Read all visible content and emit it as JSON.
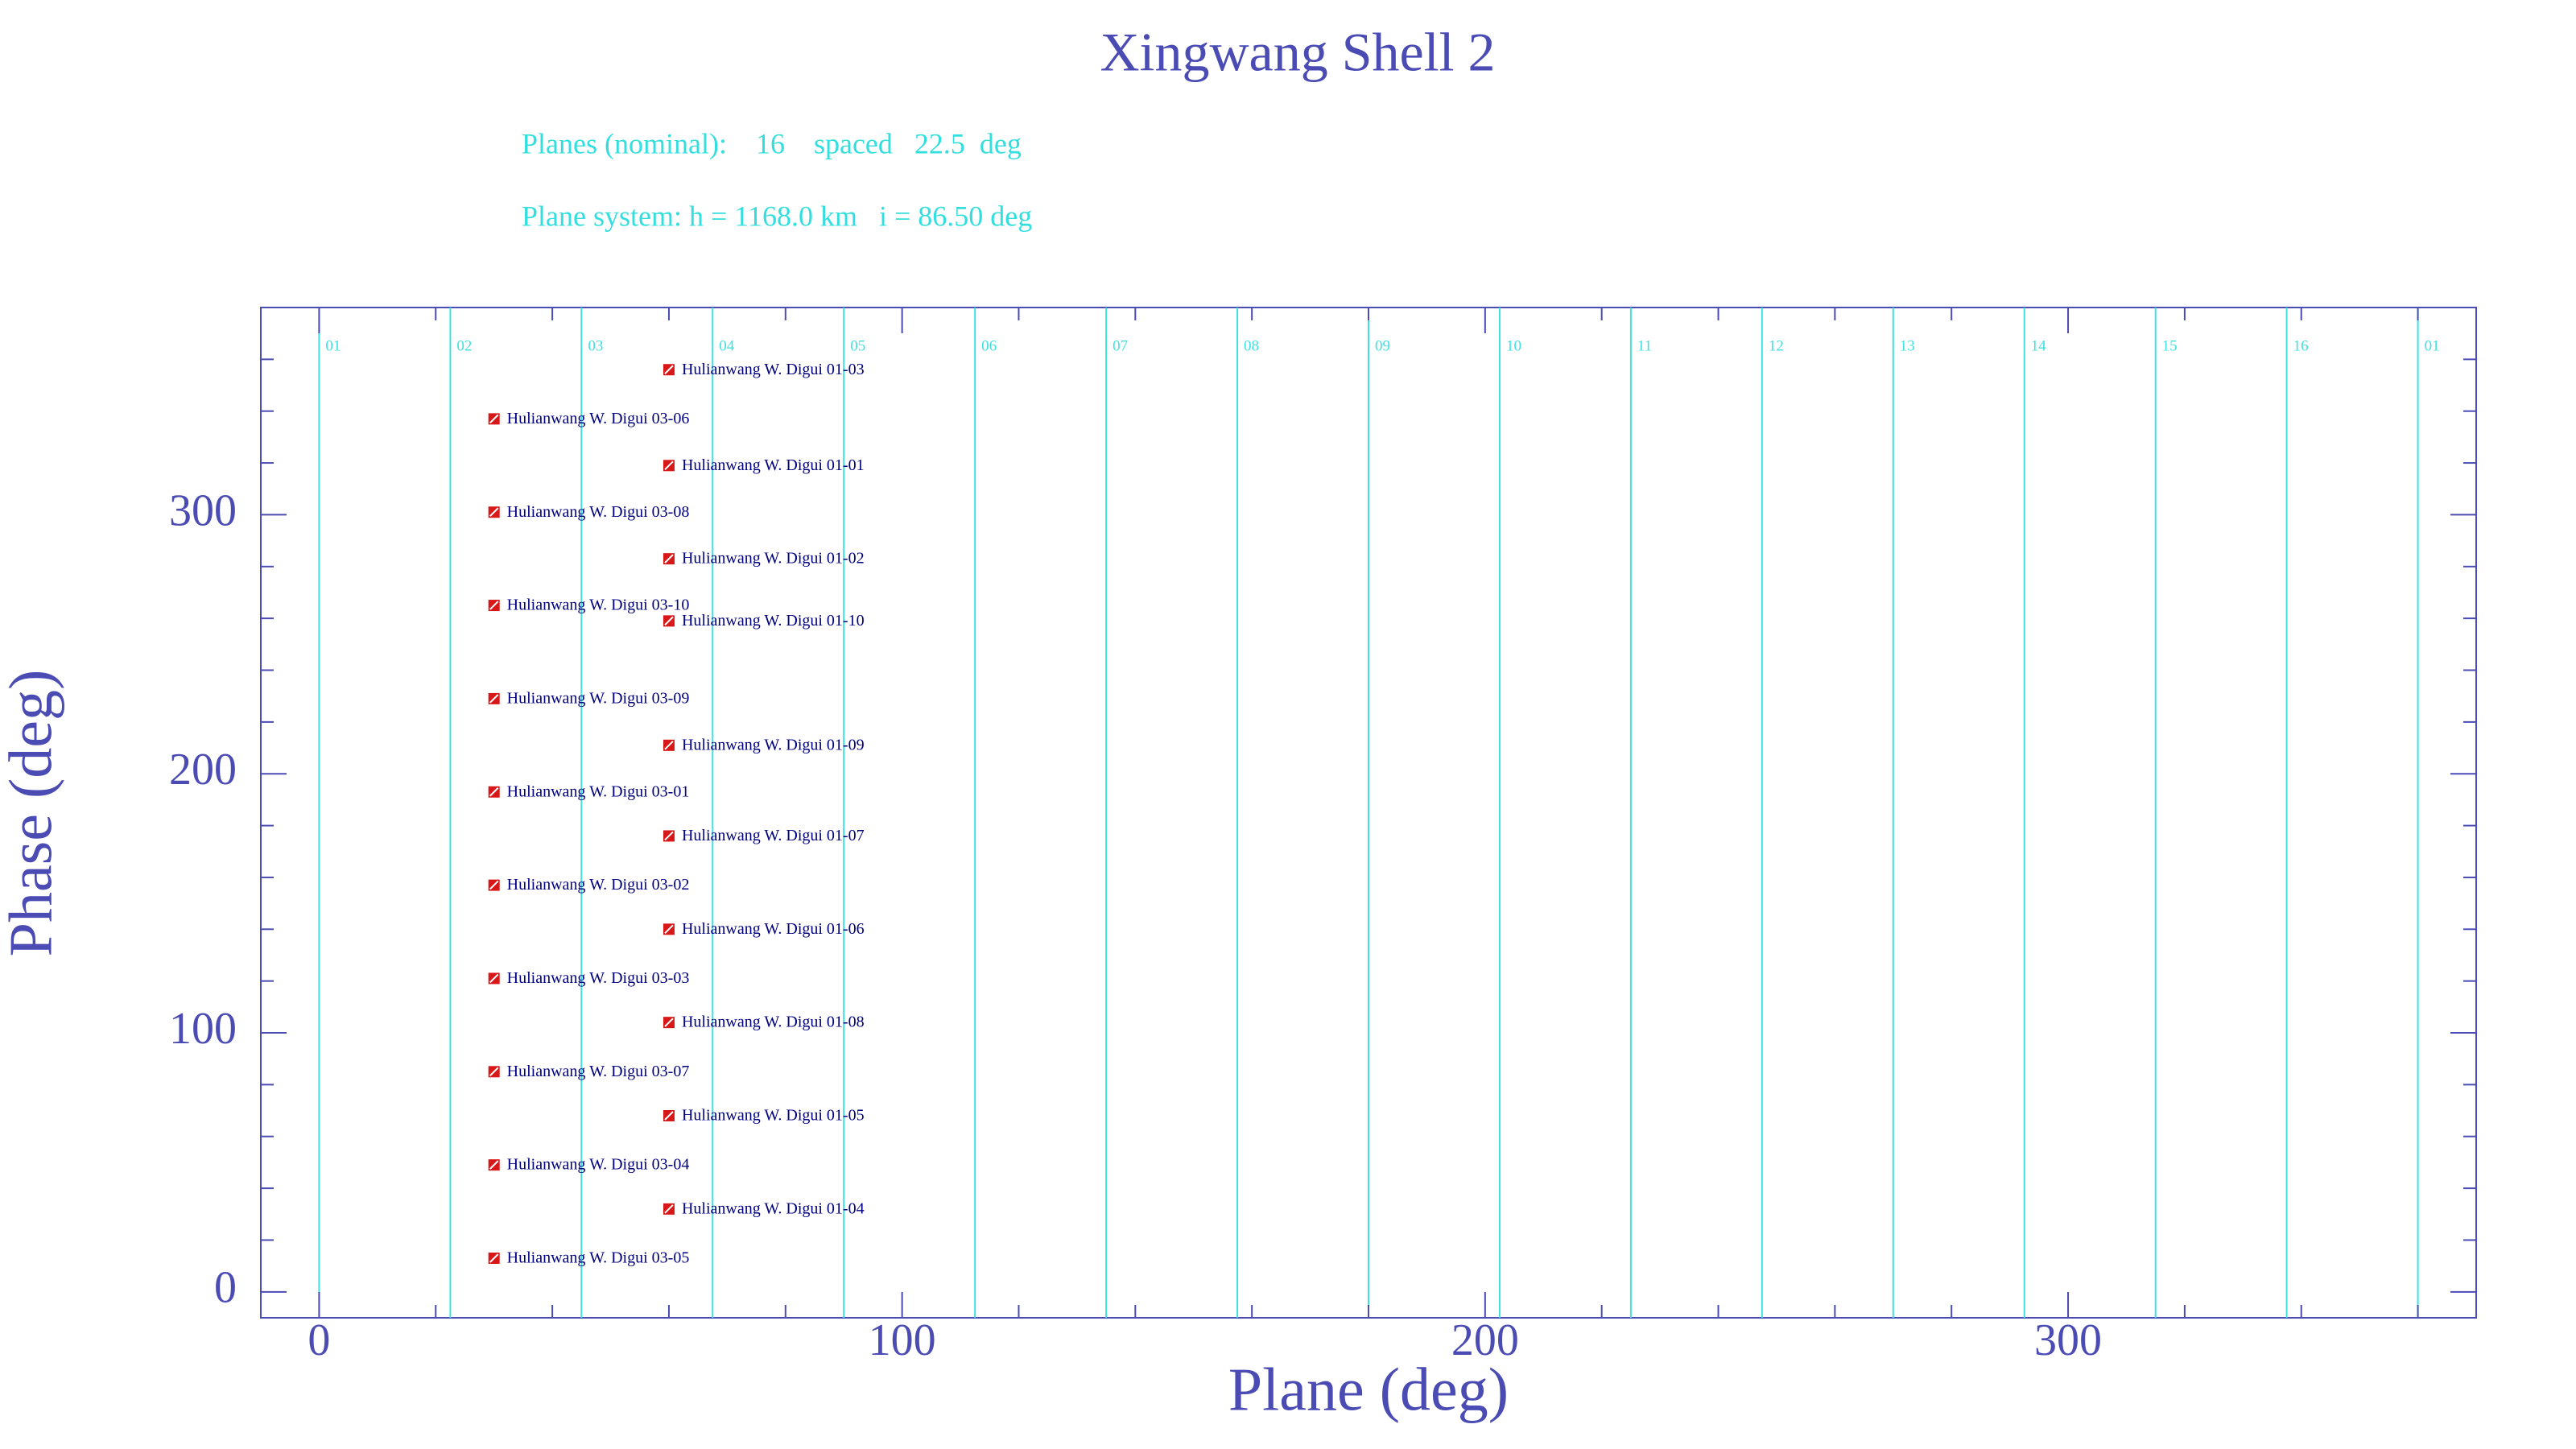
{
  "chart_data": {
    "type": "scatter",
    "title": "Xingwang Shell 2",
    "annotations": [
      "Planes (nominal):    16    spaced   22.5  deg",
      "Plane system: h = 1168.0 km   i = 86.50 deg"
    ],
    "x_label": "Plane (deg)",
    "y_label": "Phase (deg)",
    "xlim": [
      -10,
      370
    ],
    "ylim": [
      -10,
      380
    ],
    "xticks": [
      0,
      100,
      200,
      300
    ],
    "yticks": [
      0,
      100,
      200,
      300
    ],
    "xminorticks": [
      20,
      40,
      60,
      80,
      120,
      140,
      160,
      180,
      220,
      240,
      260,
      280,
      320,
      340,
      360
    ],
    "yminorticks": [
      20,
      40,
      60,
      80,
      120,
      140,
      160,
      180,
      220,
      240,
      260,
      280,
      320,
      340,
      360
    ],
    "planes": [
      {
        "value": 0,
        "label": "01"
      },
      {
        "value": 22.5,
        "label": "02"
      },
      {
        "value": 45,
        "label": "03"
      },
      {
        "value": 67.5,
        "label": "04"
      },
      {
        "value": 90,
        "label": "05"
      },
      {
        "value": 112.5,
        "label": "06"
      },
      {
        "value": 135,
        "label": "07"
      },
      {
        "value": 157.5,
        "label": "08"
      },
      {
        "value": 180,
        "label": "09"
      },
      {
        "value": 202.5,
        "label": "10"
      },
      {
        "value": 225,
        "label": "11"
      },
      {
        "value": 247.5,
        "label": "12"
      },
      {
        "value": 270,
        "label": "13"
      },
      {
        "value": 292.5,
        "label": "14"
      },
      {
        "value": 315,
        "label": "15"
      },
      {
        "value": 337.5,
        "label": "16"
      },
      {
        "value": 360,
        "label": "01"
      }
    ],
    "plane_color": "#40e0e0",
    "marker_color": "#d81818",
    "label_color": "#000080",
    "points": [
      {
        "label": "Hulianwang W. Digui 01-03",
        "x": 60,
        "y": 356
      },
      {
        "label": "Hulianwang W. Digui 03-06",
        "x": 30,
        "y": 337
      },
      {
        "label": "Hulianwang W. Digui 01-01",
        "x": 60,
        "y": 319
      },
      {
        "label": "Hulianwang W. Digui 03-08",
        "x": 30,
        "y": 301
      },
      {
        "label": "Hulianwang W. Digui 01-02",
        "x": 60,
        "y": 283
      },
      {
        "label": "Hulianwang W. Digui 03-10",
        "x": 30,
        "y": 265
      },
      {
        "label": "Hulianwang W. Digui 01-10",
        "x": 60,
        "y": 259
      },
      {
        "label": "Hulianwang W. Digui 03-09",
        "x": 30,
        "y": 229
      },
      {
        "label": "Hulianwang W. Digui 01-09",
        "x": 60,
        "y": 211
      },
      {
        "label": "Hulianwang W. Digui 03-01",
        "x": 30,
        "y": 193
      },
      {
        "label": "Hulianwang W. Digui 01-07",
        "x": 60,
        "y": 176
      },
      {
        "label": "Hulianwang W. Digui 03-02",
        "x": 30,
        "y": 157
      },
      {
        "label": "Hulianwang W. Digui 01-06",
        "x": 60,
        "y": 140
      },
      {
        "label": "Hulianwang W. Digui 03-03",
        "x": 30,
        "y": 121
      },
      {
        "label": "Hulianwang W. Digui 01-08",
        "x": 60,
        "y": 104
      },
      {
        "label": "Hulianwang W. Digui 03-07",
        "x": 30,
        "y": 85
      },
      {
        "label": "Hulianwang W. Digui 01-05",
        "x": 60,
        "y": 68
      },
      {
        "label": "Hulianwang W. Digui 03-04",
        "x": 30,
        "y": 49
      },
      {
        "label": "Hulianwang W. Digui 01-04",
        "x": 60,
        "y": 32
      },
      {
        "label": "Hulianwang W. Digui 03-05",
        "x": 30,
        "y": 13
      }
    ]
  }
}
